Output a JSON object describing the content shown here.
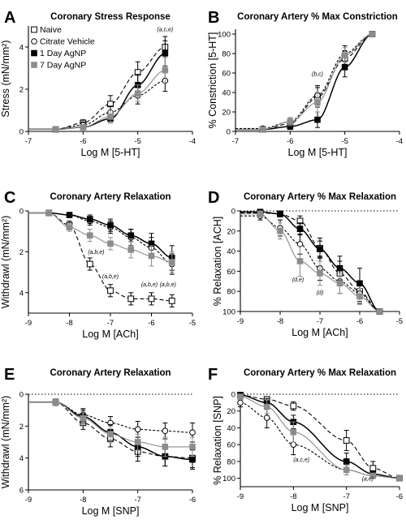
{
  "figure": {
    "colors": {
      "naive": "#000000",
      "citrate": "#000000",
      "d1": "#000000",
      "d7": "#8c8c8c",
      "axis": "#000000"
    },
    "legend": [
      {
        "label": "Naive",
        "marker": "open-square",
        "color": "#000000"
      },
      {
        "label": "Citrate Vehicle",
        "marker": "open-circle",
        "color": "#000000"
      },
      {
        "label": "1 Day AgNP",
        "marker": "filled-square",
        "color": "#000000"
      },
      {
        "label": "7 Day AgNP",
        "marker": "filled-square",
        "color": "#8c8c8c"
      }
    ]
  },
  "chart_data": [
    {
      "id": "A",
      "letter": "A",
      "type": "line",
      "title": "Coronary Stress Response",
      "xlabel": "Log M [5-HT]",
      "ylabel": "Stress (mN/mm²)",
      "xlim": [
        -7,
        -4
      ],
      "ylim": [
        0,
        5
      ],
      "y_inverted": false,
      "xticks": [
        -7,
        -6,
        -5,
        -4
      ],
      "xtick_labels": [
        "-7",
        "-6",
        "-5",
        "-4"
      ],
      "yticks": [
        0,
        2,
        4
      ],
      "ytick_labels": [
        "0",
        "2",
        "4"
      ],
      "dotted_line": null,
      "legend_position": "top-left",
      "series": [
        {
          "name": "Naive",
          "marker": "open-square",
          "x": [
            -6.5,
            -6,
            -5.5,
            -5,
            -4.5
          ],
          "y": [
            0.1,
            0.4,
            1.3,
            2.8,
            4.0
          ],
          "err": [
            0.1,
            0.15,
            0.4,
            0.5,
            0.5
          ]
        },
        {
          "name": "Citrate Vehicle",
          "marker": "open-circle",
          "x": [
            -6.5,
            -6,
            -5.5,
            -5,
            -4.5
          ],
          "y": [
            0.1,
            0.3,
            0.9,
            1.7,
            2.4
          ],
          "err": [
            0.1,
            0.15,
            0.3,
            0.4,
            0.5
          ]
        },
        {
          "name": "1 Day AgNP",
          "marker": "filled-square",
          "x": [
            -6.5,
            -6,
            -5.5,
            -5,
            -4.5
          ],
          "y": [
            0.1,
            0.2,
            0.6,
            2.2,
            3.7
          ],
          "err": [
            0.05,
            0.1,
            0.2,
            0.5,
            0.6
          ]
        },
        {
          "name": "7 Day AgNP",
          "marker": "filled-square",
          "gray": true,
          "x": [
            -6.5,
            -6,
            -5.5,
            -5,
            -4.5
          ],
          "y": [
            0.1,
            0.2,
            0.7,
            1.8,
            2.9
          ],
          "err": [
            0.05,
            0.1,
            0.3,
            0.4,
            0.6
          ]
        }
      ],
      "annotations": [
        {
          "text": "(a,c,e)",
          "x": -4.5,
          "y": 4.75
        }
      ]
    },
    {
      "id": "B",
      "letter": "B",
      "type": "line",
      "title": "Coronary Artery % Max Constriction",
      "xlabel": "Log M [5-HT]",
      "ylabel": "% Constriction [5-HT]",
      "xlim": [
        -7,
        -4
      ],
      "ylim": [
        0,
        105
      ],
      "y_inverted": false,
      "xticks": [
        -7,
        -6,
        -5,
        -4
      ],
      "xtick_labels": [
        "-7",
        "-6",
        "-5",
        "-4"
      ],
      "yticks": [
        0,
        20,
        40,
        60,
        80,
        100
      ],
      "ytick_labels": [
        "0",
        "20",
        "40",
        "60",
        "80",
        "100"
      ],
      "dotted_line": null,
      "legend_position": null,
      "series": [
        {
          "name": "Naive",
          "marker": "open-square",
          "x": [
            -6.5,
            -6,
            -5.5,
            -5,
            -4.5
          ],
          "y": [
            2,
            8,
            35,
            75,
            100
          ],
          "err": [
            2,
            4,
            10,
            8,
            2
          ]
        },
        {
          "name": "Citrate Vehicle",
          "marker": "open-circle",
          "x": [
            -6.5,
            -6,
            -5.5,
            -5,
            -4.5
          ],
          "y": [
            3,
            10,
            37,
            80,
            100
          ],
          "err": [
            2,
            4,
            10,
            8,
            2
          ]
        },
        {
          "name": "1 Day AgNP",
          "marker": "filled-square",
          "x": [
            -6.5,
            -6,
            -5.5,
            -5,
            -4.5
          ],
          "y": [
            2,
            5,
            12,
            66,
            100
          ],
          "err": [
            2,
            3,
            8,
            10,
            2
          ]
        },
        {
          "name": "7 Day AgNP",
          "marker": "filled-square",
          "gray": true,
          "x": [
            -6.5,
            -6,
            -5.5,
            -5,
            -4.5
          ],
          "y": [
            2,
            10,
            30,
            78,
            100
          ],
          "err": [
            2,
            4,
            10,
            8,
            2
          ]
        }
      ],
      "annotations": [
        {
          "text": "(b,c)",
          "x": -5.5,
          "y": 57
        }
      ]
    },
    {
      "id": "C",
      "letter": "C",
      "type": "line",
      "title": "Coronary Artery Relaxation",
      "xlabel": "Log M [ACh]",
      "ylabel": "Withdrawl (mN/mm²)",
      "xlim": [
        -9,
        -5
      ],
      "ylim": [
        0,
        5
      ],
      "y_inverted": true,
      "xticks": [
        -9,
        -8,
        -7,
        -6,
        -5
      ],
      "xtick_labels": [
        "-9",
        "-8",
        "-7",
        "-6",
        "-5"
      ],
      "yticks": [
        0,
        2,
        4
      ],
      "ytick_labels": [
        "0",
        "2",
        "4"
      ],
      "dotted_line": null,
      "legend_position": null,
      "series": [
        {
          "name": "Naive",
          "marker": "open-square",
          "x": [
            -8.5,
            -8,
            -7.5,
            -7,
            -6.5,
            -6,
            -5.5
          ],
          "y": [
            0.1,
            0.7,
            2.6,
            3.9,
            4.3,
            4.3,
            4.4
          ],
          "err": [
            0.1,
            0.2,
            0.3,
            0.3,
            0.3,
            0.3,
            0.3
          ]
        },
        {
          "name": "Citrate Vehicle",
          "marker": "open-circle",
          "x": [
            -8.5,
            -8,
            -7.5,
            -7,
            -6.5,
            -6,
            -5.5
          ],
          "y": [
            0.1,
            0.2,
            0.5,
            0.8,
            1.3,
            1.8,
            2.6
          ],
          "err": [
            0.05,
            0.1,
            0.2,
            0.3,
            0.4,
            0.5,
            0.5
          ]
        },
        {
          "name": "1 Day AgNP",
          "marker": "filled-square",
          "x": [
            -8.5,
            -8,
            -7.5,
            -7,
            -6.5,
            -6,
            -5.5
          ],
          "y": [
            0.1,
            0.2,
            0.4,
            0.7,
            1.2,
            1.6,
            2.3
          ],
          "err": [
            0.05,
            0.1,
            0.2,
            0.3,
            0.3,
            0.5,
            0.6
          ]
        },
        {
          "name": "7 Day AgNP",
          "marker": "filled-square",
          "gray": true,
          "x": [
            -8.5,
            -8,
            -7.5,
            -7,
            -6.5,
            -6,
            -5.5
          ],
          "y": [
            0.1,
            0.8,
            1.2,
            1.6,
            1.9,
            2.2,
            2.5
          ],
          "err": [
            0.05,
            0.2,
            0.3,
            0.3,
            0.4,
            0.5,
            0.5
          ]
        }
      ],
      "annotations": [
        {
          "text": "(a,b,e)",
          "x": -7.35,
          "y": 2.1
        },
        {
          "text": "(a,b,e)",
          "x": -7.0,
          "y": 3.3
        },
        {
          "text": "(a,b,e)",
          "x": -6.05,
          "y": 3.7
        },
        {
          "text": "(a,b,e)",
          "x": -5.6,
          "y": 3.7
        }
      ]
    },
    {
      "id": "D",
      "letter": "D",
      "type": "line",
      "title": "Coronary Artery % Max Relaxation",
      "xlabel": "Log M [ACh]",
      "ylabel": "% Relaxation [ACH]",
      "xlim": [
        -9,
        -5
      ],
      "ylim": [
        0,
        100
      ],
      "y_inverted": true,
      "xticks": [
        -9,
        -8,
        -7,
        -6,
        -5
      ],
      "xtick_labels": [
        "-9",
        "-8",
        "-7",
        "-6",
        "-5"
      ],
      "yticks": [
        0,
        20,
        40,
        60,
        80,
        100
      ],
      "ytick_labels": [
        "0",
        "20",
        "40",
        "60",
        "80",
        "100"
      ],
      "dotted_line": 0,
      "legend_position": null,
      "series": [
        {
          "name": "Naive",
          "marker": "open-square",
          "x": [
            -8.5,
            -8,
            -7.5,
            -7,
            -6.5,
            -6,
            -5.5
          ],
          "y": [
            2,
            3,
            10,
            37,
            62,
            80,
            100
          ],
          "err": [
            2,
            3,
            5,
            10,
            12,
            10,
            2
          ]
        },
        {
          "name": "Citrate Vehicle",
          "marker": "open-circle",
          "x": [
            -8.5,
            -8,
            -7.5,
            -7,
            -6.5,
            -6,
            -5.5
          ],
          "y": [
            5,
            17,
            33,
            57,
            70,
            82,
            100
          ],
          "err": [
            4,
            8,
            10,
            12,
            12,
            10,
            2
          ]
        },
        {
          "name": "1 Day AgNP",
          "marker": "filled-square",
          "x": [
            -8.5,
            -8,
            -7.5,
            -7,
            -6.5,
            -6,
            -5.5
          ],
          "y": [
            1,
            3,
            18,
            38,
            57,
            72,
            100
          ],
          "err": [
            1,
            2,
            6,
            8,
            12,
            15,
            2
          ]
        },
        {
          "name": "7 Day AgNP",
          "marker": "filled-square",
          "gray": true,
          "x": [
            -8.5,
            -8,
            -7.5,
            -7,
            -6.5,
            -6,
            -5.5
          ],
          "y": [
            3,
            20,
            50,
            62,
            72,
            85,
            100
          ],
          "err": [
            3,
            8,
            15,
            12,
            10,
            8,
            2
          ]
        }
      ],
      "annotations": [
        {
          "text": "(d,e)",
          "x": -7.55,
          "y": 70
        },
        {
          "text": "(d)",
          "x": -7.0,
          "y": 83
        }
      ]
    },
    {
      "id": "E",
      "letter": "E",
      "type": "line",
      "title": "Coronary Artery Relaxation",
      "xlabel": "Log M [SNP]",
      "ylabel": "Withdrawl (mN/mm²)",
      "xlim": [
        -9,
        -6
      ],
      "ylim": [
        0,
        6
      ],
      "y_inverted": true,
      "xticks": [
        -9,
        -8,
        -7,
        -6
      ],
      "xtick_labels": [
        "-9",
        "-8",
        "-7",
        "-6"
      ],
      "yticks": [
        0,
        2,
        4,
        6
      ],
      "ytick_labels": [
        "0",
        "2",
        "4",
        "6"
      ],
      "dotted_line": 0,
      "legend_position": null,
      "series": [
        {
          "name": "Naive",
          "marker": "open-square",
          "x": [
            -8.5,
            -8,
            -7.5,
            -7,
            -6.5,
            -6
          ],
          "y": [
            0.5,
            1.8,
            2.8,
            3.6,
            3.9,
            4.0
          ],
          "err": [
            0.2,
            0.4,
            0.5,
            0.6,
            0.6,
            0.6
          ]
        },
        {
          "name": "Citrate Vehicle",
          "marker": "open-circle",
          "x": [
            -8.5,
            -8,
            -7.5,
            -7,
            -6.5,
            -6
          ],
          "y": [
            0.5,
            1.3,
            1.8,
            2.2,
            2.3,
            2.4
          ],
          "err": [
            0.2,
            0.4,
            0.4,
            0.5,
            0.5,
            0.6
          ]
        },
        {
          "name": "1 Day AgNP",
          "marker": "filled-square",
          "x": [
            -8.5,
            -8,
            -7.5,
            -7,
            -6.5,
            -6
          ],
          "y": [
            0.5,
            1.4,
            2.4,
            3.3,
            3.9,
            4.1
          ],
          "err": [
            0.2,
            0.4,
            0.5,
            0.6,
            0.6,
            0.6
          ]
        },
        {
          "name": "7 Day AgNP",
          "marker": "filled-square",
          "gray": true,
          "x": [
            -8.5,
            -8,
            -7.5,
            -7,
            -6.5,
            -6
          ],
          "y": [
            0.5,
            1.5,
            2.5,
            3.0,
            3.3,
            3.3
          ],
          "err": [
            0.2,
            0.4,
            0.5,
            0.5,
            0.6,
            0.6
          ]
        }
      ],
      "annotations": []
    },
    {
      "id": "F",
      "letter": "F",
      "type": "line",
      "title": "Coronary Artery % Max Relaxation",
      "xlabel": "Log M [SNP]",
      "ylabel": "% Relaxation [SNP]",
      "xlim": [
        -9,
        -6
      ],
      "ylim": [
        0,
        110
      ],
      "y_inverted": true,
      "xticks": [
        -9,
        -8,
        -7,
        -6
      ],
      "xtick_labels": [
        "-9",
        "-8",
        "-7",
        "-6"
      ],
      "yticks": [
        0,
        20,
        40,
        60,
        80,
        100
      ],
      "ytick_labels": [
        "0",
        "20",
        "40",
        "60",
        "80",
        "100"
      ],
      "dotted_line": 0,
      "legend_position": null,
      "series": [
        {
          "name": "Naive",
          "marker": "open-square",
          "x": [
            -9,
            -8.5,
            -8,
            -7,
            -6.5,
            -6
          ],
          "y": [
            1,
            6,
            14,
            55,
            88,
            100
          ],
          "err": [
            1,
            3,
            5,
            12,
            8,
            2
          ]
        },
        {
          "name": "Citrate Vehicle",
          "marker": "open-circle",
          "x": [
            -9,
            -8.5,
            -8,
            -7,
            -6.5,
            -6
          ],
          "y": [
            10,
            28,
            60,
            90,
            97,
            100
          ],
          "err": [
            5,
            12,
            12,
            6,
            3,
            2
          ]
        },
        {
          "name": "1 Day AgNP",
          "marker": "filled-square",
          "x": [
            -9,
            -8.5,
            -8,
            -7,
            -6.5,
            -6
          ],
          "y": [
            1,
            10,
            33,
            80,
            95,
            100
          ],
          "err": [
            1,
            5,
            8,
            10,
            4,
            2
          ]
        },
        {
          "name": "7 Day AgNP",
          "marker": "filled-square",
          "gray": true,
          "x": [
            -9,
            -8.5,
            -8,
            -7,
            -6.5,
            -6
          ],
          "y": [
            3,
            15,
            45,
            90,
            97,
            100
          ],
          "err": [
            2,
            8,
            12,
            6,
            3,
            2
          ]
        }
      ],
      "annotations": [
        {
          "text": "(a,c,e)",
          "x": -7.85,
          "y": 80
        },
        {
          "text": "(a,e)",
          "x": -6.6,
          "y": 103
        }
      ]
    }
  ]
}
